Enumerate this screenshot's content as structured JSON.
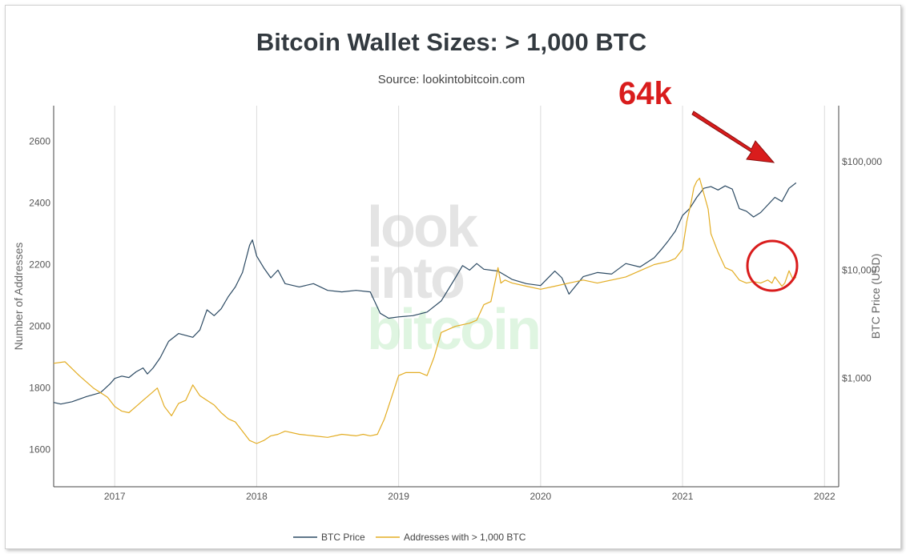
{
  "chart_data": {
    "type": "line",
    "title": "Bitcoin Wallet Sizes: > 1,000 BTC",
    "subtitle": "Source: lookintobitcoin.com",
    "xlabel": "",
    "ylabel_left": "Number of Addresses",
    "ylabel_right": "BTC Price (USD)",
    "x_ticks": [
      "2017",
      "2018",
      "2019",
      "2020",
      "2021",
      "2022"
    ],
    "xlim": [
      2016.57,
      2022.1
    ],
    "y_left_ticks": [
      1600,
      1800,
      2000,
      2200,
      2400,
      2600
    ],
    "y_left_lim": [
      1480,
      2715
    ],
    "y_right_ticks": [
      1000,
      10000,
      100000
    ],
    "y_right_tick_labels": [
      "$1,000",
      "$10,000",
      "$100,000"
    ],
    "y_right_scale": "log",
    "y_right_lim": [
      100,
      330000
    ],
    "grid": "vertical",
    "legend": "bottom-center",
    "watermark": [
      "look",
      "into",
      "bitcoin"
    ],
    "annotation": {
      "text": "64k",
      "color": "#d91c1c"
    },
    "series": [
      {
        "name": "BTC Price",
        "axis": "right",
        "color": "#2c4a63",
        "x": [
          2016.57,
          2016.62,
          2016.7,
          2016.8,
          2016.9,
          2016.97,
          2017.0,
          2017.05,
          2017.1,
          2017.15,
          2017.2,
          2017.23,
          2017.27,
          2017.32,
          2017.38,
          2017.45,
          2017.5,
          2017.55,
          2017.6,
          2017.65,
          2017.7,
          2017.75,
          2017.8,
          2017.85,
          2017.9,
          2017.95,
          2017.97,
          2018.0,
          2018.05,
          2018.1,
          2018.15,
          2018.2,
          2018.3,
          2018.4,
          2018.5,
          2018.6,
          2018.7,
          2018.8,
          2018.87,
          2018.93,
          2019.0,
          2019.1,
          2019.2,
          2019.3,
          2019.4,
          2019.45,
          2019.5,
          2019.55,
          2019.6,
          2019.7,
          2019.8,
          2019.9,
          2020.0,
          2020.1,
          2020.15,
          2020.2,
          2020.3,
          2020.4,
          2020.5,
          2020.6,
          2020.7,
          2020.8,
          2020.85,
          2020.9,
          2020.95,
          2021.0,
          2021.05,
          2021.1,
          2021.15,
          2021.2,
          2021.25,
          2021.3,
          2021.35,
          2021.4,
          2021.45,
          2021.5,
          2021.55,
          2021.6,
          2021.65,
          2021.7,
          2021.75,
          2021.8
        ],
        "y": [
          600,
          580,
          610,
          680,
          740,
          900,
          1000,
          1050,
          1020,
          1150,
          1250,
          1100,
          1250,
          1550,
          2200,
          2600,
          2500,
          2400,
          2800,
          4300,
          3800,
          4400,
          5700,
          7000,
          9500,
          17000,
          19000,
          13500,
          10500,
          8500,
          10000,
          7500,
          7000,
          7500,
          6500,
          6300,
          6500,
          6300,
          4000,
          3600,
          3700,
          3800,
          4100,
          5200,
          8500,
          11000,
          10000,
          11500,
          10200,
          9800,
          8200,
          7500,
          7200,
          9800,
          8500,
          6000,
          8700,
          9500,
          9200,
          11500,
          10700,
          13000,
          15500,
          18700,
          23000,
          32000,
          37000,
          47000,
          57000,
          59000,
          55000,
          60000,
          56000,
          37000,
          35000,
          31000,
          34000,
          40000,
          47000,
          43000,
          57000,
          64000
        ]
      },
      {
        "name": "Addresses with > 1,000 BTC",
        "axis": "left",
        "color": "#e3ad24",
        "x": [
          2016.57,
          2016.65,
          2016.75,
          2016.85,
          2016.95,
          2017.0,
          2017.05,
          2017.1,
          2017.15,
          2017.2,
          2017.25,
          2017.3,
          2017.35,
          2017.4,
          2017.45,
          2017.5,
          2017.55,
          2017.6,
          2017.65,
          2017.7,
          2017.75,
          2017.8,
          2017.85,
          2017.9,
          2017.95,
          2018.0,
          2018.05,
          2018.1,
          2018.15,
          2018.2,
          2018.3,
          2018.4,
          2018.5,
          2018.6,
          2018.7,
          2018.75,
          2018.8,
          2018.85,
          2018.9,
          2018.95,
          2019.0,
          2019.05,
          2019.1,
          2019.15,
          2019.2,
          2019.25,
          2019.3,
          2019.4,
          2019.5,
          2019.55,
          2019.6,
          2019.65,
          2019.7,
          2019.72,
          2019.75,
          2019.8,
          2019.9,
          2020.0,
          2020.1,
          2020.2,
          2020.3,
          2020.4,
          2020.5,
          2020.6,
          2020.7,
          2020.8,
          2020.9,
          2020.95,
          2021.0,
          2021.03,
          2021.06,
          2021.08,
          2021.1,
          2021.12,
          2021.15,
          2021.18,
          2021.2,
          2021.25,
          2021.3,
          2021.35,
          2021.4,
          2021.45,
          2021.5,
          2021.55,
          2021.6,
          2021.63,
          2021.65,
          2021.7,
          2021.72,
          2021.75,
          2021.78,
          2021.8
        ],
        "y": [
          1880,
          1885,
          1840,
          1800,
          1770,
          1740,
          1725,
          1720,
          1740,
          1760,
          1780,
          1800,
          1740,
          1710,
          1750,
          1760,
          1810,
          1775,
          1760,
          1745,
          1720,
          1700,
          1690,
          1660,
          1630,
          1620,
          1630,
          1645,
          1650,
          1660,
          1650,
          1645,
          1640,
          1650,
          1645,
          1650,
          1645,
          1650,
          1700,
          1770,
          1840,
          1850,
          1850,
          1850,
          1840,
          1900,
          1980,
          2000,
          2010,
          2020,
          2070,
          2080,
          2190,
          2140,
          2150,
          2140,
          2130,
          2120,
          2130,
          2140,
          2150,
          2140,
          2150,
          2160,
          2180,
          2200,
          2210,
          2220,
          2250,
          2340,
          2400,
          2450,
          2470,
          2480,
          2430,
          2380,
          2300,
          2240,
          2190,
          2180,
          2150,
          2140,
          2145,
          2140,
          2150,
          2140,
          2160,
          2130,
          2140,
          2180,
          2150,
          2160
        ]
      }
    ]
  }
}
